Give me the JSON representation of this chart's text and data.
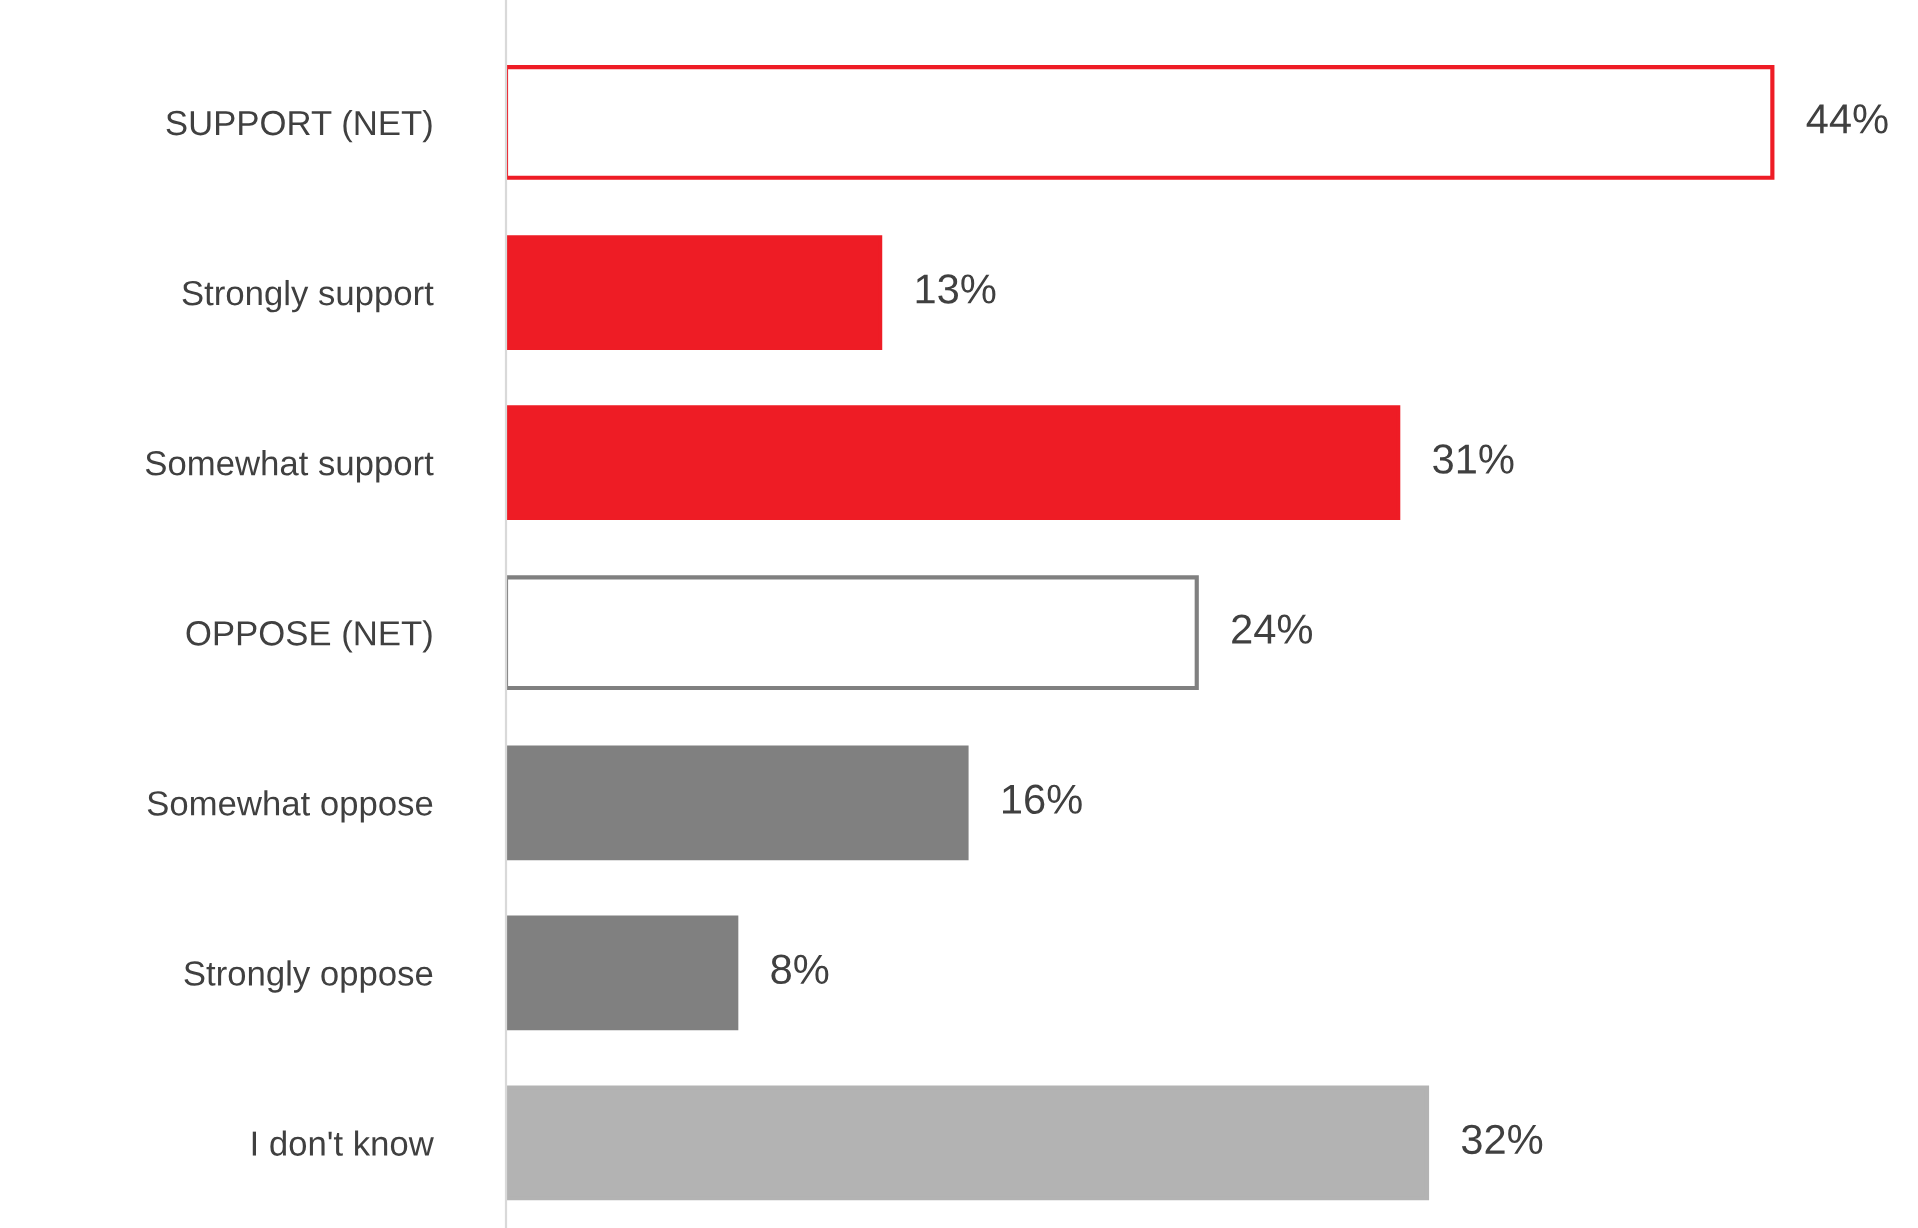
{
  "chart_data": {
    "type": "bar",
    "orientation": "horizontal",
    "categories": [
      "SUPPORT (NET)",
      "Strongly support",
      "Somewhat support",
      "OPPOSE (NET)",
      "Somewhat oppose",
      "Strongly oppose",
      "I don't know"
    ],
    "values": [
      44,
      13,
      31,
      24,
      16,
      8,
      32
    ],
    "colors": [
      "#ffffff",
      "#ee1c25",
      "#ee1c25",
      "#ffffff",
      "#808080",
      "#808080",
      "#b3b3b3"
    ],
    "value_labels": [
      "44%",
      "13%",
      "31%",
      "24%",
      "16%",
      "8%",
      "32%"
    ],
    "grid": false,
    "legend": false,
    "tick_labels": "y"
  }
}
